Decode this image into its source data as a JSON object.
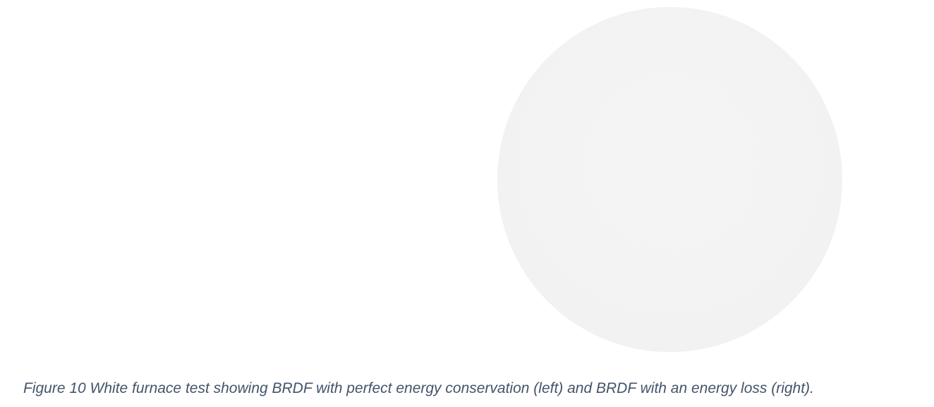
{
  "figure": {
    "caption": "Figure 10 White furnace test showing BRDF with perfect energy conservation (left) and BRDF with an energy loss (right).",
    "caption_color": "#44546a",
    "panels": [
      {
        "side": "left",
        "sphere_color": "#ffffff"
      },
      {
        "side": "right",
        "sphere_color": "#f3f3f3"
      }
    ]
  }
}
